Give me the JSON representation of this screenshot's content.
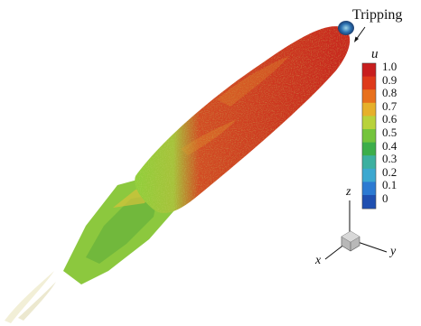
{
  "annotation": {
    "label": "Tripping"
  },
  "colorbar": {
    "variable": "u",
    "levels": [
      "1.0",
      "0.9",
      "0.8",
      "0.7",
      "0.6",
      "0.5",
      "0.4",
      "0.3",
      "0.2",
      "0.1",
      "0"
    ],
    "colors": [
      "#c81e1e",
      "#de3a1a",
      "#e8701c",
      "#e6b02a",
      "#b8d23a",
      "#74c43c",
      "#3cae4a",
      "#3cb0a0",
      "#3ca8d0",
      "#2c7ad2",
      "#1f4fb0"
    ]
  },
  "axes": {
    "x": "x",
    "y": "y",
    "z": "z"
  },
  "colors": {
    "wake_red": "#cc2a1e",
    "transition_green": "#7ec23c",
    "tripping_blue": "#2a6fb0"
  }
}
